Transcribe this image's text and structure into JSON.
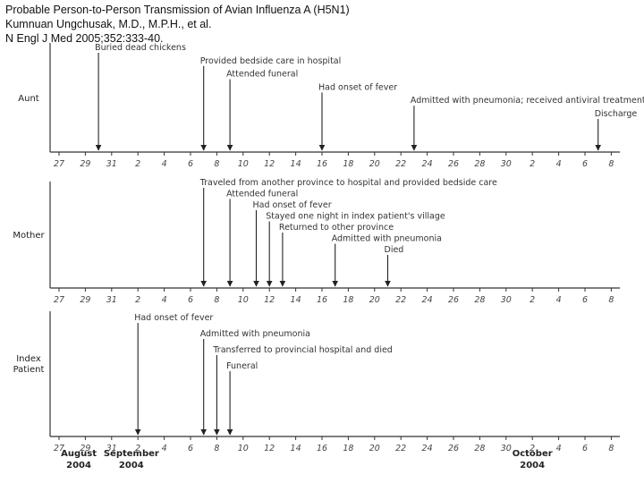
{
  "header": {
    "title": "Probable Person-to-Person Transmission of Avian Influenza A (H5N1)",
    "authors": "Kumnuan Ungchusak, M.D., M.P.H., et al.",
    "citation": "N Engl J Med 2005;352:333-40."
  },
  "tick_labels": [
    "27",
    "29",
    "31",
    "2",
    "4",
    "6",
    "8",
    "10",
    "12",
    "14",
    "16",
    "18",
    "20",
    "22",
    "24",
    "26",
    "28",
    "30",
    "2",
    "4",
    "6",
    "8"
  ],
  "month_labels": [
    {
      "line1": "August",
      "line2": "2004"
    },
    {
      "line1": "September",
      "line2": "2004"
    },
    {
      "line1": "October",
      "line2": "2004"
    }
  ],
  "panels": [
    {
      "label_lines": [
        "Aunt"
      ],
      "events": [
        {
          "text": "Buried dead chickens",
          "day": 30
        },
        {
          "text": "Provided bedside care in hospital",
          "day": 38
        },
        {
          "text": "Attended funeral",
          "day": 40
        },
        {
          "text": "Had onset of fever",
          "day": 47
        },
        {
          "text": "Admitted with pneumonia; received antiviral treatment",
          "day": 54
        },
        {
          "text": "Discharge",
          "day": 68
        }
      ]
    },
    {
      "label_lines": [
        "Mother"
      ],
      "events": [
        {
          "text": "Traveled from another province to hospital and provided bedside care",
          "day": 38
        },
        {
          "text": "Attended funeral",
          "day": 40
        },
        {
          "text": "Had onset of fever",
          "day": 42
        },
        {
          "text": "Stayed one night in index patient's village",
          "day": 43
        },
        {
          "text": "Returned to other province",
          "day": 44
        },
        {
          "text": "Admitted with pneumonia",
          "day": 48
        },
        {
          "text": "Died",
          "day": 52
        }
      ]
    },
    {
      "label_lines": [
        "Index",
        "Patient"
      ],
      "events": [
        {
          "text": "Had onset of fever",
          "day": 33
        },
        {
          "text": "Admitted with pneumonia",
          "day": 38
        },
        {
          "text": "Transferred to provincial hospital and died",
          "day": 39
        },
        {
          "text": "Funeral",
          "day": 40
        }
      ]
    }
  ]
}
